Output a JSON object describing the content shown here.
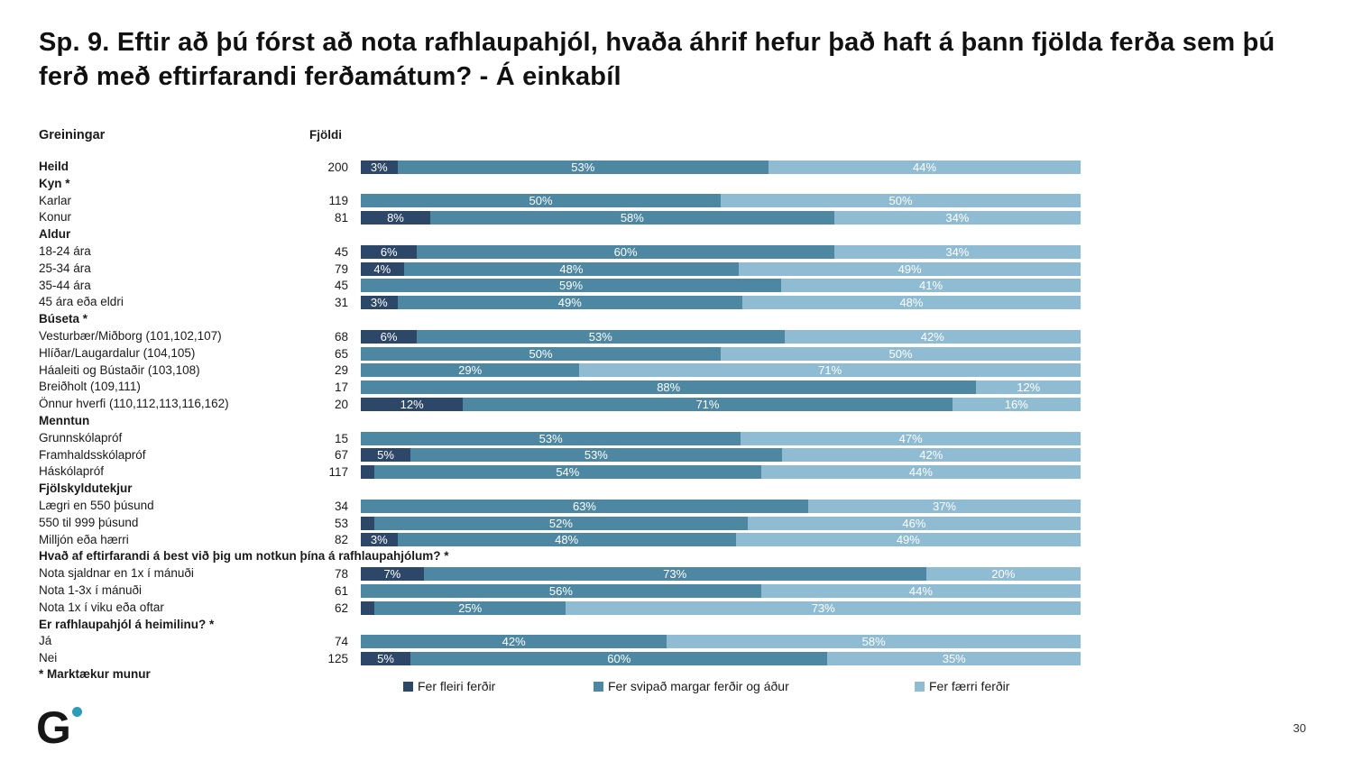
{
  "title": "Sp. 9. Eftir að þú fórst að nota rafhlaupahjól, hvaða áhrif hefur það haft á þann fjölda ferða sem þú ferð með eftirfarandi ferðamátum? - Á einkabíl",
  "columns": {
    "analysis": "Greiningar",
    "count": "Fjöldi"
  },
  "legend": [
    {
      "label": "Fer fleiri ferðir",
      "color": "#2D4768"
    },
    {
      "label": "Fer svipað margar ferðir og áður",
      "color": "#4D87A2"
    },
    {
      "label": "Fer færri ferðir",
      "color": "#90BCD3"
    }
  ],
  "footnote": "* Marktækur munur",
  "page_number": "30",
  "logo": {
    "letter": "G",
    "dot_color": "#2E9CB8"
  },
  "chart_data": {
    "type": "bar",
    "stacked": true,
    "orientation": "horizontal",
    "unit": "percent",
    "xlim": [
      0,
      100
    ],
    "series_names": [
      "Fer fleiri ferðir",
      "Fer svipað margar ferðir og áður",
      "Fer færri ferðir"
    ],
    "rows": [
      {
        "type": "data",
        "label": "Heild",
        "bold": true,
        "count": "200",
        "values": [
          3,
          53,
          44
        ],
        "labels": [
          "3%",
          "53%",
          "44%"
        ]
      },
      {
        "type": "header",
        "label": "Kyn *"
      },
      {
        "type": "data",
        "label": "Karlar",
        "count": "119",
        "values": [
          0,
          50,
          50
        ],
        "labels": [
          "",
          "50%",
          "50%"
        ]
      },
      {
        "type": "data",
        "label": "Konur",
        "count": "81",
        "values": [
          8,
          58,
          34
        ],
        "labels": [
          "8%",
          "58%",
          "34%"
        ]
      },
      {
        "type": "header",
        "label": "Aldur"
      },
      {
        "type": "data",
        "label": "18-24 ára",
        "count": "45",
        "values": [
          6,
          60,
          34
        ],
        "labels": [
          "6%",
          "60%",
          "34%"
        ]
      },
      {
        "type": "data",
        "label": "25-34 ára",
        "count": "79",
        "values": [
          4,
          48,
          49
        ],
        "labels": [
          "4%",
          "48%",
          "49%"
        ]
      },
      {
        "type": "data",
        "label": "35-44 ára",
        "count": "45",
        "values": [
          0,
          59,
          41
        ],
        "labels": [
          "",
          "59%",
          "41%"
        ]
      },
      {
        "type": "data",
        "label": "45 ára eða eldri",
        "count": "31",
        "values": [
          3,
          49,
          48
        ],
        "labels": [
          "3%",
          "49%",
          "48%"
        ]
      },
      {
        "type": "header",
        "label": "Búseta *"
      },
      {
        "type": "data",
        "label": "Vesturbær/Miðborg (101,102,107)",
        "count": "68",
        "values": [
          6,
          53,
          42
        ],
        "labels": [
          "6%",
          "53%",
          "42%"
        ]
      },
      {
        "type": "data",
        "label": "Hlíðar/Laugardalur (104,105)",
        "count": "65",
        "values": [
          0,
          50,
          50
        ],
        "labels": [
          "",
          "50%",
          "50%"
        ]
      },
      {
        "type": "data",
        "label": "Háaleiti og Bústaðir (103,108)",
        "count": "29",
        "values": [
          0,
          29,
          71
        ],
        "labels": [
          "",
          "29%",
          "71%"
        ]
      },
      {
        "type": "data",
        "label": "Breiðholt (109,111)",
        "count": "17",
        "values": [
          0,
          88,
          12
        ],
        "labels": [
          "",
          "88%",
          "12%"
        ]
      },
      {
        "type": "data",
        "label": "Önnur hverfi (110,112,113,116,162)",
        "count": "20",
        "values": [
          12,
          71,
          16
        ],
        "labels": [
          "12%",
          "71%",
          "16%"
        ]
      },
      {
        "type": "header",
        "label": "Menntun"
      },
      {
        "type": "data",
        "label": "Grunnskólapróf",
        "count": "15",
        "values": [
          0,
          53,
          47
        ],
        "labels": [
          "",
          "53%",
          "47%"
        ]
      },
      {
        "type": "data",
        "label": "Framhaldsskólapróf",
        "count": "67",
        "values": [
          5,
          53,
          42
        ],
        "labels": [
          "5%",
          "53%",
          "42%"
        ]
      },
      {
        "type": "data",
        "label": "Háskólapróf",
        "count": "117",
        "values": [
          2,
          54,
          44
        ],
        "labels": [
          "",
          "54%",
          "44%"
        ]
      },
      {
        "type": "header",
        "label": "Fjölskyldutekjur"
      },
      {
        "type": "data",
        "label": "Lægri en 550 þúsund",
        "count": "34",
        "values": [
          0,
          63,
          37
        ],
        "labels": [
          "",
          "63%",
          "37%"
        ]
      },
      {
        "type": "data",
        "label": "550 til 999 þúsund",
        "count": "53",
        "values": [
          2,
          52,
          46
        ],
        "labels": [
          "",
          "52%",
          "46%"
        ]
      },
      {
        "type": "data",
        "label": "Milljón eða hærri",
        "count": "82",
        "values": [
          3,
          48,
          49
        ],
        "labels": [
          "3%",
          "48%",
          "49%"
        ]
      },
      {
        "type": "header",
        "label": "Hvað af eftirfarandi á best við þig um notkun þína á rafhlaupahjólum? *"
      },
      {
        "type": "data",
        "label": "Nota sjaldnar en 1x í mánuði",
        "count": "78",
        "values": [
          7,
          73,
          20
        ],
        "labels": [
          "7%",
          "73%",
          "20%"
        ]
      },
      {
        "type": "data",
        "label": "Nota 1-3x í mánuði",
        "count": "61",
        "values": [
          0,
          56,
          44
        ],
        "labels": [
          "",
          "56%",
          "44%"
        ]
      },
      {
        "type": "data",
        "label": "Nota 1x í viku eða oftar",
        "count": "62",
        "values": [
          2,
          25,
          73
        ],
        "labels": [
          "",
          "25%",
          "73%"
        ]
      },
      {
        "type": "header",
        "label": "Er rafhlaupahjól á heimilinu? *"
      },
      {
        "type": "data",
        "label": "Já",
        "count": "74",
        "values": [
          0,
          42,
          58
        ],
        "labels": [
          "",
          "42%",
          "58%"
        ]
      },
      {
        "type": "data",
        "label": "Nei",
        "count": "125",
        "values": [
          5,
          60,
          35
        ],
        "labels": [
          "5%",
          "60%",
          "35%"
        ]
      }
    ]
  }
}
